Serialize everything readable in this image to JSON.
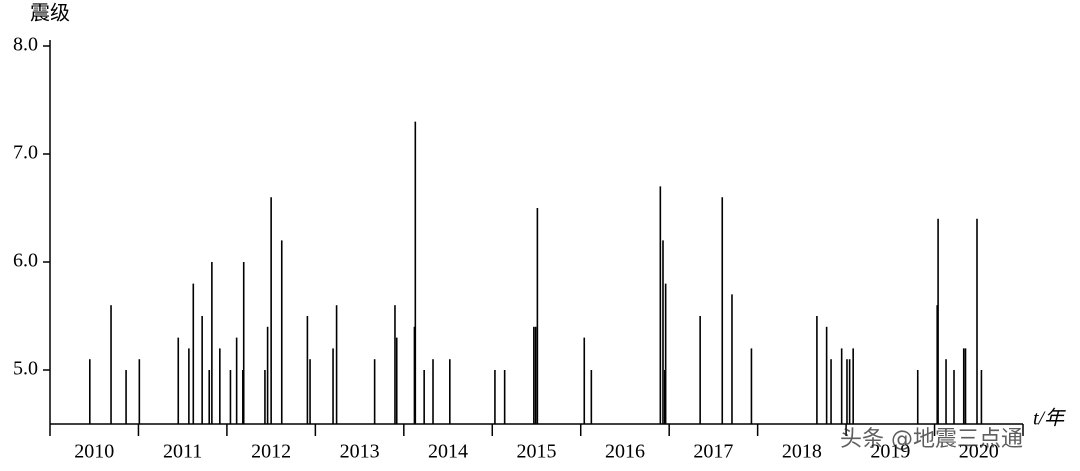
{
  "chart_data": {
    "type": "stem",
    "y_label": "震级",
    "x_label": "t/年",
    "watermark": "头条 @地震三点通",
    "x": [
      2010.45,
      2010.69,
      2010.86,
      2011.01,
      2011.45,
      2011.57,
      2011.62,
      2011.72,
      2011.8,
      2011.83,
      2011.92,
      2012.04,
      2012.11,
      2012.18,
      2012.19,
      2012.43,
      2012.46,
      2012.5,
      2012.62,
      2012.91,
      2012.94,
      2013.2,
      2013.24,
      2013.67,
      2013.9,
      2013.92,
      2014.12,
      2014.13,
      2014.23,
      2014.33,
      2014.52,
      2015.03,
      2015.14,
      2015.47,
      2015.49,
      2015.51,
      2016.04,
      2016.12,
      2016.9,
      2016.93,
      2016.95,
      2016.96,
      2017.35,
      2017.6,
      2017.71,
      2017.93,
      2018.67,
      2018.78,
      2018.83,
      2018.95,
      2019.01,
      2019.04,
      2019.08,
      2019.81,
      2020.03,
      2020.04,
      2020.13,
      2020.22,
      2020.33,
      2020.35,
      2020.48,
      2020.53
    ],
    "values": [
      5.1,
      5.6,
      5.0,
      5.1,
      5.3,
      5.2,
      5.8,
      5.5,
      5.0,
      6.0,
      5.2,
      5.0,
      5.3,
      5.0,
      6.0,
      5.0,
      5.4,
      6.6,
      6.2,
      5.5,
      5.1,
      5.2,
      5.6,
      5.1,
      5.6,
      5.3,
      5.4,
      7.3,
      5.0,
      5.1,
      5.1,
      5.0,
      5.0,
      5.4,
      5.4,
      6.5,
      5.3,
      5.0,
      6.7,
      6.2,
      5.0,
      5.8,
      5.5,
      6.6,
      5.7,
      5.2,
      5.5,
      5.4,
      5.1,
      5.2,
      5.1,
      5.1,
      5.2,
      5.0,
      5.6,
      6.4,
      5.1,
      5.0,
      5.2,
      5.2,
      6.4,
      5.0
    ],
    "color": "#000000",
    "xlim": [
      2010,
      2021
    ],
    "xticks": [
      {
        "value": 2010.5,
        "label": "2010"
      },
      {
        "value": 2011.5,
        "label": "2011"
      },
      {
        "value": 2012.5,
        "label": "2012"
      },
      {
        "value": 2013.5,
        "label": "2013"
      },
      {
        "value": 2014.5,
        "label": "2014"
      },
      {
        "value": 2015.5,
        "label": "2015"
      },
      {
        "value": 2016.5,
        "label": "2016"
      },
      {
        "value": 2017.5,
        "label": "2017"
      },
      {
        "value": 2018.5,
        "label": "2018"
      },
      {
        "value": 2019.5,
        "label": "2019"
      },
      {
        "value": 2020.5,
        "label": "2020"
      }
    ],
    "ylim": [
      4.5,
      8.0
    ],
    "yticks": [
      {
        "value": 5,
        "label": "5.0"
      },
      {
        "value": 6,
        "label": "6.0"
      },
      {
        "value": 7,
        "label": "7.0"
      },
      {
        "value": 8,
        "label": "8.0"
      }
    ]
  }
}
